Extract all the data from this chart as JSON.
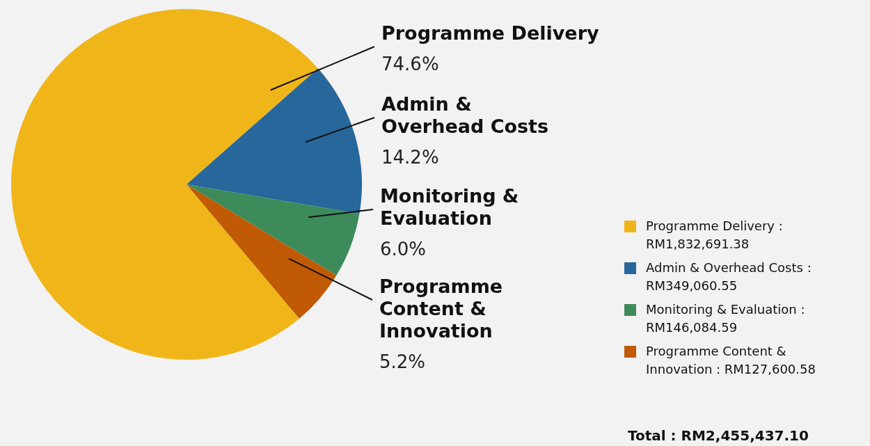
{
  "chart_data": {
    "type": "pie",
    "categories": [
      "Programme Delivery",
      "Admin & Overhead Costs",
      "Monitoring & Evaluation",
      "Programme Content & Innovation"
    ],
    "values": [
      74.6,
      14.2,
      6.0,
      5.2
    ],
    "value_labels": [
      "74.6%",
      "14.2%",
      "6.0%",
      "5.2%"
    ],
    "colors": [
      "#f0b619",
      "#28679b",
      "#3d8b5a",
      "#c05a05"
    ],
    "legend": "right",
    "annotations": [
      ": RM1,832,691.38",
      ": RM349,060.55",
      ": RM146,084.59",
      ": RM127,600.58",
      "Total : RM2,455,437.10"
    ]
  }
}
